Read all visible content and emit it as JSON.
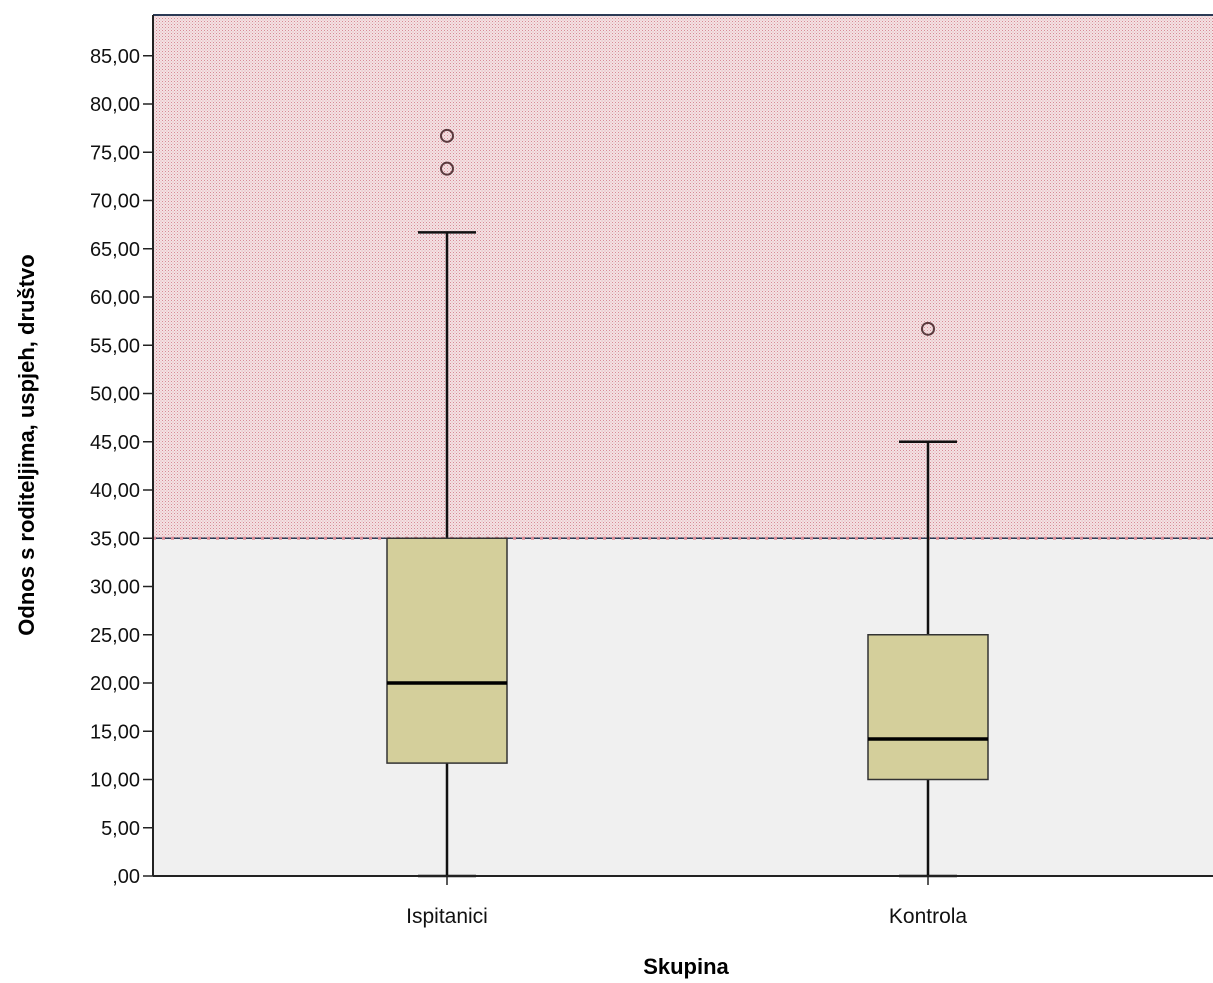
{
  "chart_data": {
    "type": "boxplot",
    "xlabel": "Skupina",
    "ylabel": "Odnos s roditeljima, uspjeh, društvo",
    "ylim": [
      0,
      88
    ],
    "y_ticks": [
      0,
      5,
      10,
      15,
      20,
      25,
      30,
      35,
      40,
      45,
      50,
      55,
      60,
      65,
      70,
      75,
      80,
      85
    ],
    "y_tick_labels": [
      ",00",
      "5,00",
      "10,00",
      "15,00",
      "20,00",
      "25,00",
      "30,00",
      "35,00",
      "40,00",
      "45,00",
      "50,00",
      "55,00",
      "60,00",
      "65,00",
      "70,00",
      "75,00",
      "80,00",
      "85,00"
    ],
    "reference_line": {
      "y": 35,
      "region_above_color": "#f2d6d9",
      "region_below_color": "#f0f0f0"
    },
    "box_color": "#d4cf9b",
    "groups": [
      {
        "label": "Ispitanici",
        "whisker_low": 0,
        "q1": 11.7,
        "median": 20,
        "q3": 35,
        "whisker_high": 66.7,
        "outliers": [
          73.3,
          76.7
        ]
      },
      {
        "label": "Kontrola",
        "whisker_low": 0,
        "q1": 10,
        "median": 14.2,
        "q3": 25,
        "whisker_high": 45,
        "outliers": [
          56.7
        ]
      }
    ]
  }
}
